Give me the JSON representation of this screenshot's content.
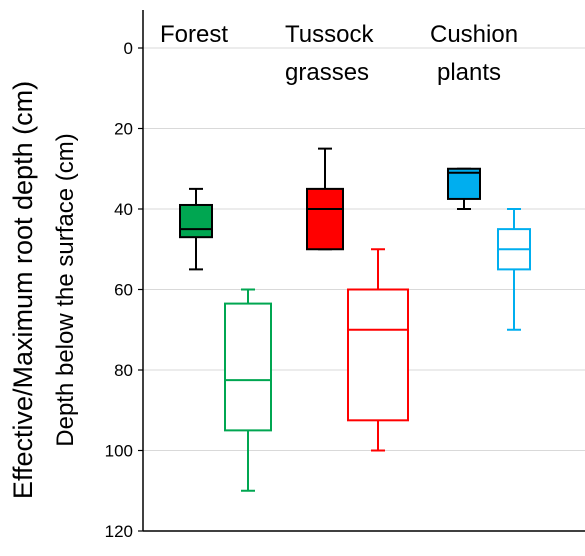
{
  "chart_data": {
    "type": "box",
    "title": "",
    "ylabel": "Effective/Maximum root depth (cm)",
    "ylabel2": "Depth below the surface (cm)",
    "ylim": [
      0,
      120
    ],
    "y_inverted": true,
    "y_ticks": [
      0,
      20,
      40,
      60,
      80,
      100,
      120
    ],
    "grid": "horizontal",
    "categories": [
      {
        "label_lines": [
          "Forest"
        ],
        "color": "#00a651"
      },
      {
        "label_lines": [
          "Tussock",
          "grasses"
        ],
        "color": "#ff0000"
      },
      {
        "label_lines": [
          "Cushion",
          "plants"
        ],
        "color": "#00aeef"
      }
    ],
    "series": [
      {
        "style": "filled",
        "boxes": [
          {
            "category": "Forest",
            "whisker_low": 35,
            "q1": 39,
            "median": 45,
            "q3": 47,
            "whisker_high": 55
          },
          {
            "category": "Tussock grasses",
            "whisker_low": 25,
            "q1": 35,
            "median": 40,
            "q3": 50,
            "whisker_high": 50
          },
          {
            "category": "Cushion plants",
            "whisker_low": 30,
            "q1": 30,
            "median": 31,
            "q3": 37.5,
            "whisker_high": 40
          }
        ]
      },
      {
        "style": "outline",
        "boxes": [
          {
            "category": "Forest",
            "whisker_low": 60,
            "q1": 63.5,
            "median": 82.5,
            "q3": 95,
            "whisker_high": 110
          },
          {
            "category": "Tussock grasses",
            "whisker_low": 50,
            "q1": 60,
            "median": 70,
            "q3": 92.5,
            "whisker_high": 100
          },
          {
            "category": "Cushion plants",
            "whisker_low": 40,
            "q1": 45,
            "median": 50,
            "q3": 55,
            "whisker_high": 70
          }
        ]
      }
    ]
  }
}
